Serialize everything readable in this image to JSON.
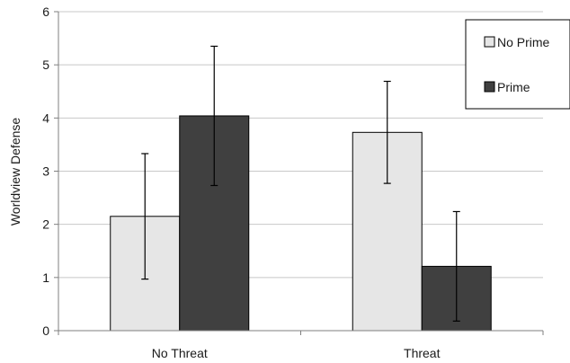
{
  "chart_data": {
    "type": "bar",
    "title": "",
    "xlabel": "",
    "ylabel": "Worldview Defense",
    "ylim": [
      0,
      6
    ],
    "yticks": [
      "0",
      "1",
      "2",
      "3",
      "4",
      "5",
      "6"
    ],
    "grid": true,
    "legend_position": "top-right",
    "categories": [
      "No Threat",
      "Threat"
    ],
    "series": [
      {
        "name": "No Prime",
        "color": "#e6e6e6",
        "values": [
          2.15,
          3.73
        ],
        "error": [
          1.18,
          0.96
        ]
      },
      {
        "name": "Prime",
        "color": "#404040",
        "values": [
          4.04,
          1.21
        ],
        "error": [
          1.31,
          1.03
        ]
      }
    ]
  }
}
